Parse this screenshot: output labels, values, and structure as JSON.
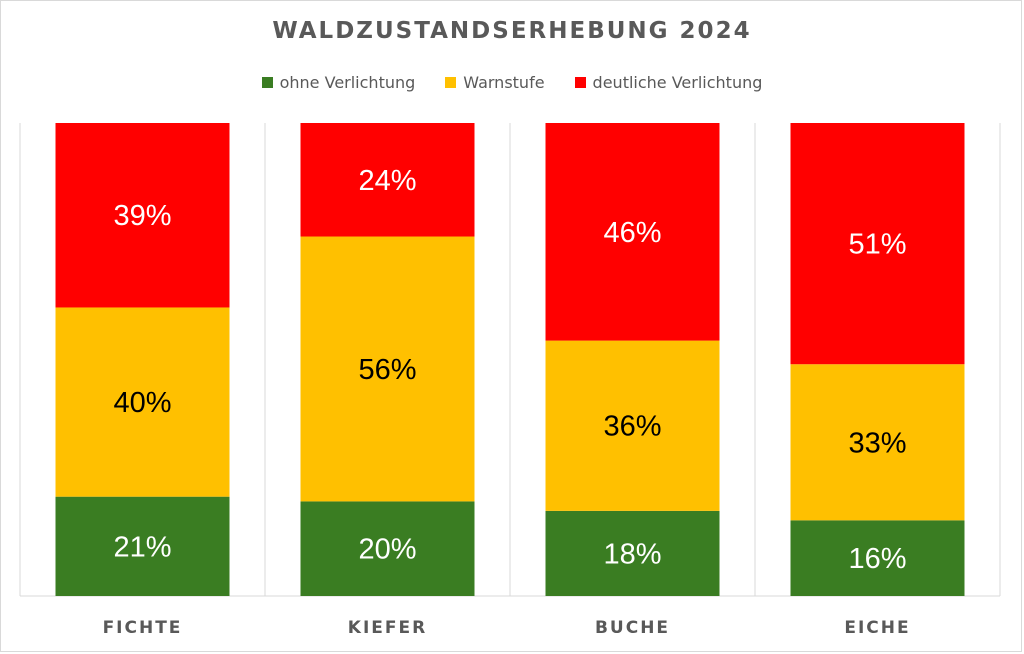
{
  "chart_data": {
    "type": "bar",
    "stacked": true,
    "percent": true,
    "title": "WALDZUSTANDSERHEBUNG 2024",
    "categories": [
      "FICHTE",
      "KIEFER",
      "BUCHE",
      "EICHE"
    ],
    "series": [
      {
        "name": "ohne Verlichtung",
        "color": "#3a7d22",
        "label_color": "#ffffff",
        "values": [
          21,
          20,
          18,
          16
        ]
      },
      {
        "name": "Warnstufe",
        "color": "#ffc000",
        "label_color": "#000000",
        "values": [
          40,
          56,
          36,
          33
        ]
      },
      {
        "name": "deutliche Verlichtung",
        "color": "#ff0000",
        "label_color": "#ffffff",
        "values": [
          39,
          24,
          46,
          51
        ]
      }
    ],
    "ylim": [
      0,
      100
    ],
    "legend_position": "top",
    "grid": "vertical separators",
    "xlabel": "",
    "ylabel": ""
  }
}
